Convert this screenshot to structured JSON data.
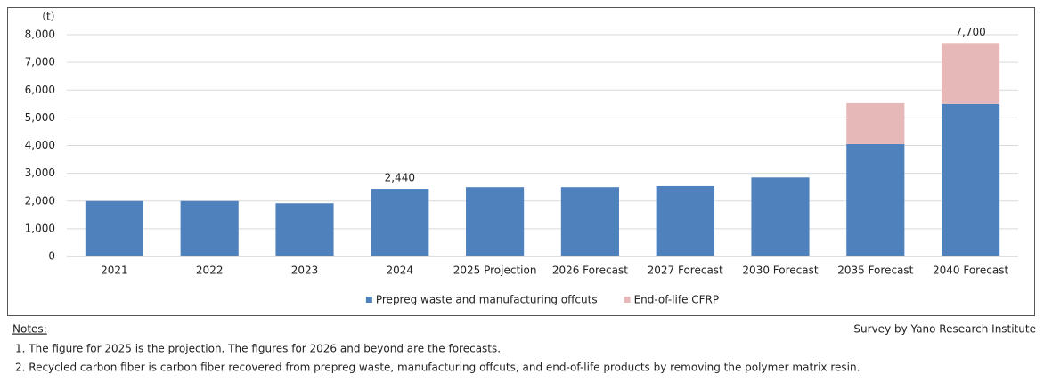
{
  "chart_data": {
    "type": "stacked_bar",
    "y_label": "（t）",
    "categories": [
      "2021",
      "2022",
      "2023",
      "2024",
      "2025 Projection",
      "2026 Forecast",
      "2027 Forecast",
      "2030 Forecast",
      "2035 Forecast",
      "2040 Forecast"
    ],
    "series": [
      {
        "name": "Prepreg waste and manufacturing offcuts",
        "color": "#4f81bd",
        "values": [
          2000,
          2000,
          1920,
          2440,
          2500,
          2500,
          2540,
          2850,
          4050,
          5500
        ]
      },
      {
        "name": "End-of-life CFRP",
        "color": "#e6b9b8",
        "values": [
          null,
          null,
          null,
          null,
          null,
          null,
          null,
          null,
          1480,
          2200
        ]
      }
    ],
    "total_labels": [
      null,
      null,
      null,
      "2,440",
      null,
      null,
      null,
      null,
      null,
      "7,700"
    ],
    "ylim": [
      0,
      8000
    ],
    "yticks": [
      0,
      {
        "value": 1000,
        "label": "1,000"
      },
      {
        "value": 2000,
        "label": "2,000"
      },
      {
        "value": 3000,
        "label": "3,000"
      },
      {
        "value": 4000,
        "label": "4,000"
      },
      {
        "value": 5000,
        "label": "5,000"
      },
      {
        "value": 6000,
        "label": "6,000"
      },
      {
        "value": 7000,
        "label": "7,000"
      },
      {
        "value": 8000,
        "label": "8,000"
      }
    ],
    "grid": true,
    "legend": "bottom"
  },
  "notes": {
    "heading": "Notes:",
    "items": [
      "1.  The figure for 2025 is the projection. The figures for 2026 and beyond are the forecasts.",
      "2.  Recycled carbon fiber is carbon fiber recovered from prepreg waste, manufacturing offcuts, and end-of-life products by removing the polymer matrix resin."
    ]
  },
  "source": "Survey by Yano Research Institute"
}
